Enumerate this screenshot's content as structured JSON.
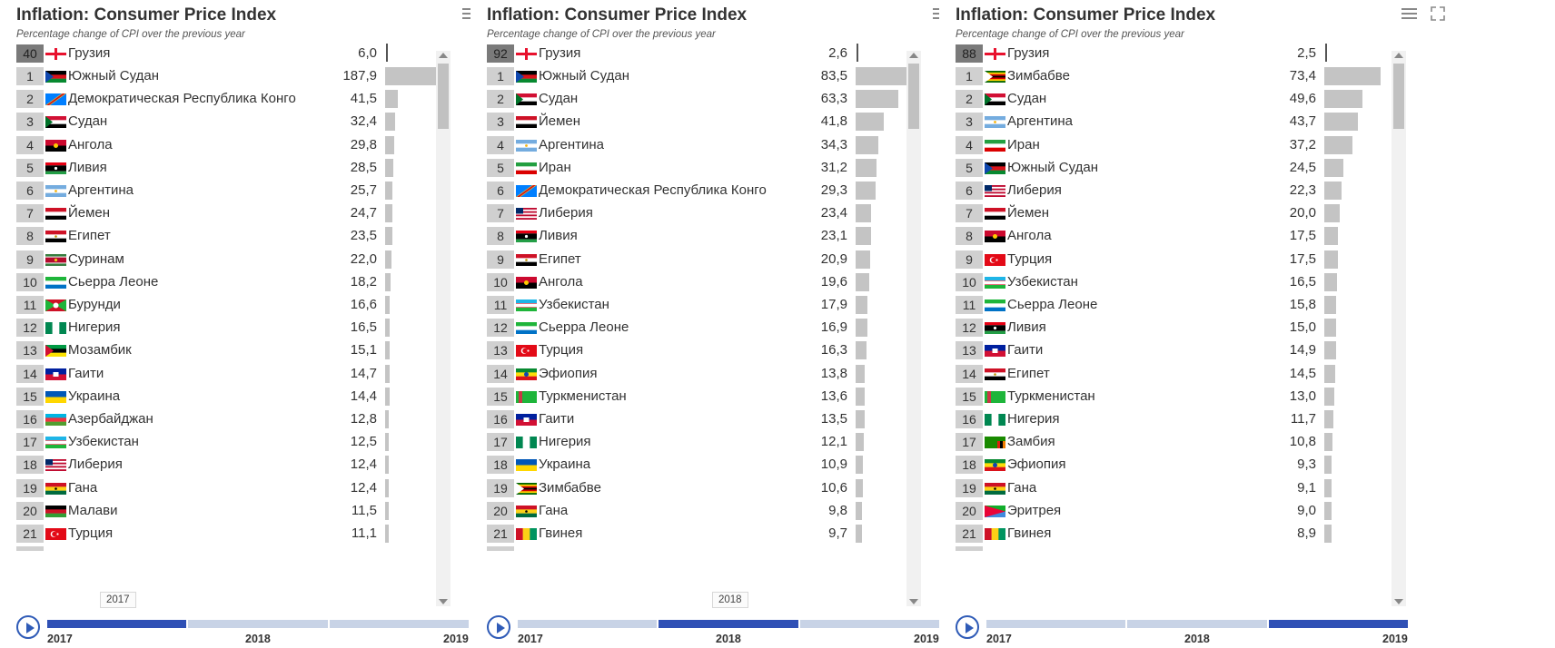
{
  "title": "Inflation: Consumer Price Index",
  "subtitle": "Percentage change of CPI over the previous year",
  "icons": {
    "menu": "hamburger-menu-icon",
    "fullscreen": "fullscreen-icon",
    "play": "play-icon"
  },
  "colors": {
    "bar": "#c4c4c4",
    "timeline_active": "#2f50b5",
    "timeline": "#c8d3e6",
    "rank_bg": "#d0d0d0",
    "highlight_rank_bg": "#7a7a7a"
  },
  "timeline_years": [
    "2017",
    "2018",
    "2019"
  ],
  "panels": [
    {
      "year": "2017",
      "tooltip": "2017",
      "highlight": {
        "rank": "40",
        "country": "Грузия",
        "value": "6,0",
        "flag": "georgia"
      },
      "rows": [
        {
          "rank": "1",
          "country": "Южный Судан",
          "value": "187,9",
          "flag": "south_sudan"
        },
        {
          "rank": "2",
          "country": "Демократическая Республика Конго",
          "value": "41,5",
          "flag": "drc"
        },
        {
          "rank": "3",
          "country": "Судан",
          "value": "32,4",
          "flag": "sudan"
        },
        {
          "rank": "4",
          "country": "Ангола",
          "value": "29,8",
          "flag": "angola"
        },
        {
          "rank": "5",
          "country": "Ливия",
          "value": "28,5",
          "flag": "libya"
        },
        {
          "rank": "6",
          "country": "Аргентина",
          "value": "25,7",
          "flag": "argentina"
        },
        {
          "rank": "7",
          "country": "Йемен",
          "value": "24,7",
          "flag": "yemen"
        },
        {
          "rank": "8",
          "country": "Египет",
          "value": "23,5",
          "flag": "egypt"
        },
        {
          "rank": "9",
          "country": "Суринам",
          "value": "22,0",
          "flag": "suriname"
        },
        {
          "rank": "10",
          "country": "Сьерра Леоне",
          "value": "18,2",
          "flag": "sierra_leone"
        },
        {
          "rank": "11",
          "country": "Бурунди",
          "value": "16,6",
          "flag": "burundi"
        },
        {
          "rank": "12",
          "country": "Нигерия",
          "value": "16,5",
          "flag": "nigeria"
        },
        {
          "rank": "13",
          "country": "Мозамбик",
          "value": "15,1",
          "flag": "mozambique"
        },
        {
          "rank": "14",
          "country": "Гаити",
          "value": "14,7",
          "flag": "haiti"
        },
        {
          "rank": "15",
          "country": "Украина",
          "value": "14,4",
          "flag": "ukraine"
        },
        {
          "rank": "16",
          "country": "Азербайджан",
          "value": "12,8",
          "flag": "azerbaijan"
        },
        {
          "rank": "17",
          "country": "Узбекистан",
          "value": "12,5",
          "flag": "uzbekistan"
        },
        {
          "rank": "18",
          "country": "Либерия",
          "value": "12,4",
          "flag": "liberia"
        },
        {
          "rank": "19",
          "country": "Гана",
          "value": "12,4",
          "flag": "ghana"
        },
        {
          "rank": "20",
          "country": "Малави",
          "value": "11,5",
          "flag": "malawi"
        },
        {
          "rank": "21",
          "country": "Турция",
          "value": "11,1",
          "flag": "turkey"
        }
      ]
    },
    {
      "year": "2018",
      "tooltip": "2018",
      "highlight": {
        "rank": "92",
        "country": "Грузия",
        "value": "2,6",
        "flag": "georgia"
      },
      "rows": [
        {
          "rank": "1",
          "country": "Южный Судан",
          "value": "83,5",
          "flag": "south_sudan"
        },
        {
          "rank": "2",
          "country": "Судан",
          "value": "63,3",
          "flag": "sudan"
        },
        {
          "rank": "3",
          "country": "Йемен",
          "value": "41,8",
          "flag": "yemen"
        },
        {
          "rank": "4",
          "country": "Аргентина",
          "value": "34,3",
          "flag": "argentina"
        },
        {
          "rank": "5",
          "country": "Иран",
          "value": "31,2",
          "flag": "iran"
        },
        {
          "rank": "6",
          "country": "Демократическая Республика Конго",
          "value": "29,3",
          "flag": "drc"
        },
        {
          "rank": "7",
          "country": "Либерия",
          "value": "23,4",
          "flag": "liberia"
        },
        {
          "rank": "8",
          "country": "Ливия",
          "value": "23,1",
          "flag": "libya"
        },
        {
          "rank": "9",
          "country": "Египет",
          "value": "20,9",
          "flag": "egypt"
        },
        {
          "rank": "10",
          "country": "Ангола",
          "value": "19,6",
          "flag": "angola"
        },
        {
          "rank": "11",
          "country": "Узбекистан",
          "value": "17,9",
          "flag": "uzbekistan"
        },
        {
          "rank": "12",
          "country": "Сьерра Леоне",
          "value": "16,9",
          "flag": "sierra_leone"
        },
        {
          "rank": "13",
          "country": "Турция",
          "value": "16,3",
          "flag": "turkey"
        },
        {
          "rank": "14",
          "country": "Эфиопия",
          "value": "13,8",
          "flag": "ethiopia"
        },
        {
          "rank": "15",
          "country": "Туркменистан",
          "value": "13,6",
          "flag": "turkmenistan"
        },
        {
          "rank": "16",
          "country": "Гаити",
          "value": "13,5",
          "flag": "haiti"
        },
        {
          "rank": "17",
          "country": "Нигерия",
          "value": "12,1",
          "flag": "nigeria"
        },
        {
          "rank": "18",
          "country": "Украина",
          "value": "10,9",
          "flag": "ukraine"
        },
        {
          "rank": "19",
          "country": "Зимбабве",
          "value": "10,6",
          "flag": "zimbabwe"
        },
        {
          "rank": "20",
          "country": "Гана",
          "value": "9,8",
          "flag": "ghana"
        },
        {
          "rank": "21",
          "country": "Гвинея",
          "value": "9,7",
          "flag": "guinea"
        }
      ]
    },
    {
      "year": "2019",
      "tooltip": "",
      "highlight": {
        "rank": "88",
        "country": "Грузия",
        "value": "2,5",
        "flag": "georgia"
      },
      "rows": [
        {
          "rank": "1",
          "country": "Зимбабве",
          "value": "73,4",
          "flag": "zimbabwe"
        },
        {
          "rank": "2",
          "country": "Судан",
          "value": "49,6",
          "flag": "sudan"
        },
        {
          "rank": "3",
          "country": "Аргентина",
          "value": "43,7",
          "flag": "argentina"
        },
        {
          "rank": "4",
          "country": "Иран",
          "value": "37,2",
          "flag": "iran"
        },
        {
          "rank": "5",
          "country": "Южный Судан",
          "value": "24,5",
          "flag": "south_sudan"
        },
        {
          "rank": "6",
          "country": "Либерия",
          "value": "22,3",
          "flag": "liberia"
        },
        {
          "rank": "7",
          "country": "Йемен",
          "value": "20,0",
          "flag": "yemen"
        },
        {
          "rank": "8",
          "country": "Ангола",
          "value": "17,5",
          "flag": "angola"
        },
        {
          "rank": "9",
          "country": "Турция",
          "value": "17,5",
          "flag": "turkey"
        },
        {
          "rank": "10",
          "country": "Узбекистан",
          "value": "16,5",
          "flag": "uzbekistan"
        },
        {
          "rank": "11",
          "country": "Сьерра Леоне",
          "value": "15,8",
          "flag": "sierra_leone"
        },
        {
          "rank": "12",
          "country": "Ливия",
          "value": "15,0",
          "flag": "libya"
        },
        {
          "rank": "13",
          "country": "Гаити",
          "value": "14,9",
          "flag": "haiti"
        },
        {
          "rank": "14",
          "country": "Египет",
          "value": "14,5",
          "flag": "egypt"
        },
        {
          "rank": "15",
          "country": "Туркменистан",
          "value": "13,0",
          "flag": "turkmenistan"
        },
        {
          "rank": "16",
          "country": "Нигерия",
          "value": "11,7",
          "flag": "nigeria"
        },
        {
          "rank": "17",
          "country": "Замбия",
          "value": "10,8",
          "flag": "zambia"
        },
        {
          "rank": "18",
          "country": "Эфиопия",
          "value": "9,3",
          "flag": "ethiopia"
        },
        {
          "rank": "19",
          "country": "Гана",
          "value": "9,1",
          "flag": "ghana"
        },
        {
          "rank": "20",
          "country": "Эритрея",
          "value": "9,0",
          "flag": "eritrea"
        },
        {
          "rank": "21",
          "country": "Гвинея",
          "value": "8,9",
          "flag": "guinea"
        }
      ]
    }
  ],
  "chart_data": [
    {
      "type": "bar",
      "title": "Inflation: Consumer Price Index",
      "subtitle": "Percentage change of CPI over the previous year",
      "year": "2017",
      "categories": [
        "Грузия",
        "Южный Судан",
        "Демократическая Республика Конго",
        "Судан",
        "Ангола",
        "Ливия",
        "Аргентина",
        "Йемен",
        "Египет",
        "Суринам",
        "Сьерра Леоне",
        "Бурунди",
        "Нигерия",
        "Мозамбик",
        "Гаити",
        "Украина",
        "Азербайджан",
        "Узбекистан",
        "Либерия",
        "Гана",
        "Малави",
        "Турция"
      ],
      "values": [
        6.0,
        187.9,
        41.5,
        32.4,
        29.8,
        28.5,
        25.7,
        24.7,
        23.5,
        22.0,
        18.2,
        16.6,
        16.5,
        15.1,
        14.7,
        14.4,
        12.8,
        12.5,
        12.4,
        12.4,
        11.5,
        11.1
      ],
      "xlim": [
        0,
        187.9
      ]
    },
    {
      "type": "bar",
      "title": "Inflation: Consumer Price Index",
      "subtitle": "Percentage change of CPI over the previous year",
      "year": "2018",
      "categories": [
        "Грузия",
        "Южный Судан",
        "Судан",
        "Йемен",
        "Аргентина",
        "Иран",
        "Демократическая Республика Конго",
        "Либерия",
        "Ливия",
        "Египет",
        "Ангола",
        "Узбекистан",
        "Сьерра Леоне",
        "Турция",
        "Эфиопия",
        "Туркменистан",
        "Гаити",
        "Нигерия",
        "Украина",
        "Зимбабве",
        "Гана",
        "Гвинея"
      ],
      "values": [
        2.6,
        83.5,
        63.3,
        41.8,
        34.3,
        31.2,
        29.3,
        23.4,
        23.1,
        20.9,
        19.6,
        17.9,
        16.9,
        16.3,
        13.8,
        13.6,
        13.5,
        12.1,
        10.9,
        10.6,
        9.8,
        9.7
      ],
      "xlim": [
        0,
        83.5
      ]
    },
    {
      "type": "bar",
      "title": "Inflation: Consumer Price Index",
      "subtitle": "Percentage change of CPI over the previous year",
      "year": "2019",
      "categories": [
        "Грузия",
        "Зимбабве",
        "Судан",
        "Аргентина",
        "Иран",
        "Южный Судан",
        "Либерия",
        "Йемен",
        "Ангола",
        "Турция",
        "Узбекистан",
        "Сьерра Леоне",
        "Ливия",
        "Гаити",
        "Египет",
        "Туркменистан",
        "Нигерия",
        "Замбия",
        "Эфиопия",
        "Гана",
        "Эритрея",
        "Гвинея"
      ],
      "values": [
        2.5,
        73.4,
        49.6,
        43.7,
        37.2,
        24.5,
        22.3,
        20.0,
        17.5,
        17.5,
        16.5,
        15.8,
        15.0,
        14.9,
        14.5,
        13.0,
        11.7,
        10.8,
        9.3,
        9.1,
        9.0,
        8.9
      ],
      "xlim": [
        0,
        73.4
      ]
    }
  ]
}
